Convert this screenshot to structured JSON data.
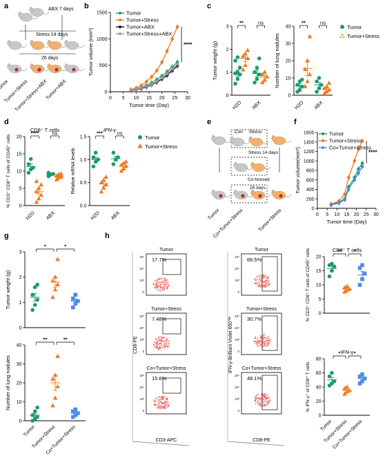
{
  "colors": {
    "green": "#1a9b6b",
    "orange": "#f07a1c",
    "blue": "#4c8be6",
    "black": "#111111",
    "gray": "#9a9a9a",
    "flow_red": "#e8433c"
  },
  "panels": {
    "a": {
      "letter": "a",
      "texts": [
        "ABX 7 days",
        "Stress 14 days",
        "26 days"
      ],
      "groups": [
        "Tumor",
        "Tumor+Stress",
        "Tumor+Stress+ABX",
        "Tumor+ABX"
      ]
    },
    "b": {
      "letter": "b"
    },
    "c": {
      "letter": "c",
      "legend": [
        "Tumor",
        "Tumor+Stress"
      ]
    },
    "d": {
      "letter": "d",
      "legend": [
        "Tumor",
        "Tumor+Stress"
      ]
    },
    "e": {
      "letter": "e",
      "texts": [
        "Con",
        "Stress",
        "Stress 14 days",
        "Co-housed",
        "26 days"
      ],
      "groups": [
        "Tumor",
        "Co+Tumor+Stress",
        "Tumor+Stress"
      ]
    },
    "f": {
      "letter": "f"
    },
    "g": {
      "letter": "g"
    },
    "h": {
      "letter": "h",
      "col1": {
        "titles": [
          "Tumor",
          "Tumor+Stress",
          "Co+Tumor+Stress"
        ],
        "percents": [
          "17.7%",
          "7.48%",
          "15.6%"
        ],
        "xlabel": "CD3-APC",
        "ylabel": "CD8-PE",
        "ticks": [
          "10⁵",
          "10⁴",
          "10³",
          "0"
        ]
      },
      "col2": {
        "titles": [
          "Tumor",
          "Tumor+Stress",
          "Co+Tumor+Stress"
        ],
        "percents": [
          "66.5%",
          "30.7%",
          "48.1%"
        ],
        "xlabel": "CD8-PE",
        "ylabel": "IFN-γ-Brilliant Violet 650™",
        "ticks": [
          "10⁵",
          "10⁴",
          "10³",
          "0"
        ]
      }
    }
  },
  "chart_data": [
    {
      "panel": "b",
      "type": "line",
      "xlabel": "Tumor time (Day)",
      "ylabel": "Tumor volume (mm³)",
      "xlim": [
        0,
        30
      ],
      "ylim": [
        0,
        1500
      ],
      "xticks": [
        "0",
        "5",
        "10",
        "15",
        "20",
        "25",
        "30"
      ],
      "yticks": [
        "0",
        "500",
        "1000",
        "1500"
      ],
      "x": [
        8,
        10,
        12,
        14,
        16,
        18,
        20,
        22,
        24,
        26
      ],
      "series": [
        {
          "name": "Tumor",
          "color": "#1a9b6b",
          "values": [
            30,
            50,
            80,
            120,
            170,
            230,
            300,
            380,
            470,
            560
          ]
        },
        {
          "name": "Tumor+Stress",
          "color": "#f07a1c",
          "values": [
            40,
            70,
            120,
            190,
            280,
            400,
            560,
            770,
            1000,
            1230
          ]
        },
        {
          "name": "Tumor+ABX",
          "color": "#111111",
          "values": [
            25,
            40,
            60,
            90,
            130,
            180,
            240,
            310,
            400,
            490
          ]
        },
        {
          "name": "Tumor+Stress+ABX",
          "color": "#9a9a9a",
          "values": [
            30,
            45,
            70,
            100,
            140,
            195,
            260,
            340,
            430,
            520
          ]
        }
      ],
      "annotation": "****"
    },
    {
      "panel": "c1",
      "type": "scatter",
      "ylabel": "Tumor weight (g)",
      "ylim": [
        0,
        3
      ],
      "yticks": [
        "0",
        "1",
        "2",
        "3"
      ],
      "categories": [
        "H2O",
        "ABX"
      ],
      "series": [
        {
          "name": "Tumor",
          "color": "#1a9b6b",
          "marker": "circle",
          "groups": [
            [
              0.5,
              0.7,
              0.9,
              0.95,
              1.0,
              1.2,
              1.5,
              1.65
            ],
            [
              0.55,
              0.7,
              0.9,
              1.0,
              1.2,
              1.6
            ]
          ],
          "means": [
            0.95,
            0.95
          ],
          "sems": [
            0.15,
            0.15
          ]
        },
        {
          "name": "Tumor+Stress",
          "color": "#f07a1c",
          "marker": "triangle",
          "groups": [
            [
              1.1,
              1.3,
              1.6,
              1.7,
              1.8,
              1.95
            ],
            [
              0.55,
              0.65,
              0.8,
              0.9,
              1.0
            ]
          ],
          "means": [
            1.6,
            0.78
          ],
          "sems": [
            0.15,
            0.1
          ]
        }
      ],
      "significance": [
        "**",
        "ns"
      ]
    },
    {
      "panel": "c2",
      "type": "scatter",
      "ylabel": "Number of lung nodules",
      "ylim": [
        0,
        40
      ],
      "yticks": [
        "0",
        "10",
        "20",
        "30",
        "40"
      ],
      "categories": [
        "H2O",
        "ABX"
      ],
      "series": [
        {
          "name": "Tumor",
          "color": "#1a9b6b",
          "marker": "circle",
          "groups": [
            [
              2,
              3,
              5,
              6,
              8,
              9
            ],
            [
              2,
              4,
              6,
              8,
              10
            ]
          ],
          "means": [
            5.5,
            6
          ],
          "sems": [
            1.2,
            1.5
          ]
        },
        {
          "name": "Tumor+Stress",
          "color": "#f07a1c",
          "marker": "triangle",
          "groups": [
            [
              5,
              8,
              12,
              15,
              20,
              34
            ],
            [
              1,
              2,
              3,
              4,
              5,
              7
            ]
          ],
          "means": [
            15.5,
            3.5
          ],
          "sems": [
            4.2,
            1
          ]
        }
      ],
      "significance": [
        "**",
        "ns"
      ]
    },
    {
      "panel": "d1",
      "type": "scatter",
      "title": "CD8⁺ T cells",
      "ylabel": "% CD3⁺ CD8⁺ T cells of CD45⁺ cells",
      "ylim": [
        0,
        20
      ],
      "yticks": [
        "0",
        "5",
        "10",
        "15",
        "20"
      ],
      "categories": [
        "H2O",
        "ABX"
      ],
      "series": [
        {
          "name": "Tumor",
          "color": "#1a9b6b",
          "marker": "circle",
          "groups": [
            [
              9.5,
              10.5,
              11,
              12,
              13.5
            ],
            [
              8.5,
              9,
              9.2,
              9.5
            ]
          ],
          "means": [
            11.3,
            9
          ],
          "sems": [
            0.8,
            0.3
          ]
        },
        {
          "name": "Tumor+Stress",
          "color": "#f07a1c",
          "marker": "triangle",
          "groups": [
            [
              1,
              2,
              3,
              4,
              5,
              6,
              7
            ],
            [
              7.5,
              8,
              8.3,
              8.6,
              9,
              9.2
            ]
          ],
          "means": [
            4,
            8.5
          ],
          "sems": [
            0.8,
            0.3
          ]
        }
      ],
      "significance": [
        "****",
        "ns"
      ]
    },
    {
      "panel": "d2",
      "type": "scatter",
      "title": "IFN-γ",
      "ylabel": "Relative mRNA levels",
      "ylim": [
        0,
        1.5
      ],
      "yticks": [
        "0.0",
        "0.5",
        "1.0",
        "1.5"
      ],
      "categories": [
        "H2O",
        "ABX"
      ],
      "series": [
        {
          "name": "Tumor",
          "color": "#1a9b6b",
          "marker": "circle",
          "groups": [
            [
              0.85,
              0.95,
              1.0,
              1.05,
              1.15
            ],
            [
              0.9,
              1.0,
              1.05,
              1.15
            ]
          ],
          "means": [
            1.0,
            1.02
          ],
          "sems": [
            0.05,
            0.05
          ]
        },
        {
          "name": "Tumor+Stress",
          "color": "#f07a1c",
          "marker": "triangle",
          "groups": [
            [
              0.3,
              0.38,
              0.45,
              0.5,
              0.55,
              0.62
            ],
            [
              0.75,
              0.8,
              0.85,
              0.88,
              0.92,
              0.95
            ]
          ],
          "means": [
            0.47,
            0.86
          ],
          "sems": [
            0.05,
            0.03
          ]
        }
      ],
      "significance": [
        "***",
        "ns"
      ]
    },
    {
      "panel": "f",
      "type": "line",
      "xlabel": "Tumor time (Day)",
      "ylabel": "Tumor volume(mm³)",
      "xlim": [
        0,
        30
      ],
      "ylim": [
        0,
        1600
      ],
      "xticks": [
        "0",
        "5",
        "10",
        "15",
        "20",
        "25",
        "30"
      ],
      "yticks": [
        "0",
        "200",
        "400",
        "600",
        "800",
        "1000",
        "1200",
        "1400",
        "1600"
      ],
      "x": [
        7,
        11,
        14,
        16,
        19,
        21,
        23
      ],
      "series": [
        {
          "name": "Tumor",
          "color": "#1a9b6b",
          "values": [
            80,
            130,
            200,
            450,
            650,
            830,
            950
          ]
        },
        {
          "name": "Tumor+Stress",
          "color": "#f07a1c",
          "values": [
            90,
            150,
            300,
            650,
            1000,
            1250,
            1420
          ]
        },
        {
          "name": "Co+Tumor+Stress",
          "color": "#4c8be6",
          "values": [
            70,
            110,
            180,
            400,
            600,
            740,
            880
          ]
        }
      ],
      "annotation": "****"
    },
    {
      "panel": "g1",
      "type": "scatter",
      "ylabel": "Tumor weight (g)",
      "ylim": [
        0,
        3
      ],
      "yticks": [
        "0",
        "1",
        "2",
        "3"
      ],
      "categories": [
        "Tumor",
        "Tumor+Stress",
        "Co+Tumor+Stress"
      ],
      "colors": [
        "#1a9b6b",
        "#f07a1c",
        "#4c8be6"
      ],
      "markers": [
        "circle",
        "triangle",
        "square"
      ],
      "groups": [
        [
          0.7,
          0.9,
          1.1,
          1.3,
          1.6,
          1.7
        ],
        [
          1.2,
          1.5,
          1.7,
          1.85,
          2.0,
          2.7
        ],
        [
          0.8,
          0.95,
          1.05,
          1.15,
          1.3
        ]
      ],
      "means": [
        1.2,
        1.8,
        1.05
      ],
      "sems": [
        0.15,
        0.2,
        0.08
      ],
      "significance": [
        {
          "between": [
            0,
            1
          ],
          "label": "*"
        },
        {
          "between": [
            1,
            2
          ],
          "label": "*"
        }
      ]
    },
    {
      "panel": "g2",
      "type": "scatter",
      "ylabel": "Number of lung nodules",
      "ylim": [
        0,
        40
      ],
      "yticks": [
        "0",
        "10",
        "20",
        "30",
        "40"
      ],
      "categories": [
        "Tumor",
        "Tumor+Stress",
        "Co+Tumor+Stress"
      ],
      "colors": [
        "#1a9b6b",
        "#f07a1c",
        "#4c8be6"
      ],
      "markers": [
        "circle",
        "triangle",
        "square"
      ],
      "groups": [
        [
          0,
          1,
          2,
          3,
          5,
          7
        ],
        [
          8,
          12,
          18,
          22,
          24,
          34
        ],
        [
          2,
          3,
          4,
          5,
          6
        ]
      ],
      "means": [
        3,
        20,
        4
      ],
      "sems": [
        1,
        4,
        0.8
      ],
      "significance": [
        {
          "between": [
            0,
            1
          ],
          "label": "**"
        },
        {
          "between": [
            1,
            2
          ],
          "label": "**"
        }
      ]
    },
    {
      "panel": "h1",
      "type": "scatter",
      "title": "CD8⁺ T cells",
      "ylabel": "% CD3⁺ CD8⁺ T cells of CD45⁺ cells",
      "ylim": [
        0,
        20
      ],
      "yticks": [
        "0",
        "5",
        "10",
        "15",
        "20"
      ],
      "categories": [
        "Tumor",
        "Tumor+Stress",
        "Co+Tumor+Stress"
      ],
      "colors": [
        "#1a9b6b",
        "#f07a1c",
        "#4c8be6"
      ],
      "markers": [
        "circle",
        "triangle",
        "square"
      ],
      "groups": [
        [
          13,
          15,
          16.5,
          17,
          17.5
        ],
        [
          7.5,
          8,
          8.5,
          9,
          9.5
        ],
        [
          10,
          12,
          14,
          16,
          17
        ]
      ],
      "means": [
        15.8,
        8.5,
        13.5
      ],
      "sems": [
        0.9,
        0.4,
        1.3
      ],
      "significance": [
        {
          "between": [
            0,
            1
          ],
          "label": "**"
        },
        {
          "between": [
            1,
            2
          ],
          "label": "*"
        }
      ]
    },
    {
      "panel": "h2",
      "type": "scatter",
      "title": "IFN-γ",
      "ylabel": "% IFN-γ⁺ of CD8⁺ T cells",
      "ylim": [
        0,
        80
      ],
      "yticks": [
        "0",
        "20",
        "40",
        "60",
        "80"
      ],
      "categories": [
        "Tumor",
        "Tumor+Stress",
        "Co+Tumor+Stress"
      ],
      "colors": [
        "#1a9b6b",
        "#f07a1c",
        "#4c8be6"
      ],
      "markers": [
        "circle",
        "triangle",
        "square"
      ],
      "groups": [
        [
          42,
          45,
          48,
          55,
          60
        ],
        [
          30,
          33,
          35,
          38,
          40
        ],
        [
          45,
          48,
          52,
          55,
          58
        ]
      ],
      "means": [
        50,
        35,
        52
      ],
      "sems": [
        3.5,
        1.8,
        2.5
      ],
      "significance": [
        {
          "between": [
            0,
            1
          ],
          "label": "*"
        },
        {
          "between": [
            1,
            2
          ],
          "label": "*"
        }
      ]
    }
  ]
}
